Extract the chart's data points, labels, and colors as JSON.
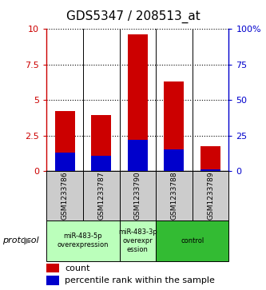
{
  "title": "GDS5347 / 208513_at",
  "samples": [
    "GSM1233786",
    "GSM1233787",
    "GSM1233790",
    "GSM1233788",
    "GSM1233789"
  ],
  "red_values": [
    4.2,
    3.95,
    9.6,
    6.3,
    1.75
  ],
  "blue_values": [
    1.3,
    1.1,
    2.2,
    1.5,
    0.15
  ],
  "ylim_left": [
    0,
    10
  ],
  "ylim_right": [
    0,
    100
  ],
  "yticks_left": [
    0,
    2.5,
    5,
    7.5,
    10
  ],
  "yticks_right": [
    0,
    25,
    50,
    75,
    100
  ],
  "ytick_labels_left": [
    "0",
    "2.5",
    "5",
    "7.5",
    "10"
  ],
  "ytick_labels_right": [
    "0",
    "25",
    "50",
    "75",
    "100%"
  ],
  "bar_width": 0.55,
  "red_color": "#cc0000",
  "blue_color": "#0000cc",
  "protocols": [
    {
      "label": "miR-483-5p\noverexpression",
      "samples": [
        0,
        1
      ],
      "color": "#bbffbb"
    },
    {
      "label": "miR-483-3p\noverexpr\nession",
      "samples": [
        2
      ],
      "color": "#bbffbb"
    },
    {
      "label": "control",
      "samples": [
        3,
        4
      ],
      "color": "#33bb33"
    }
  ],
  "protocol_row_label": "protocol",
  "legend_count_label": "count",
  "legend_pct_label": "percentile rank within the sample",
  "sample_box_color": "#cccccc",
  "plot_bg": "#ffffff"
}
